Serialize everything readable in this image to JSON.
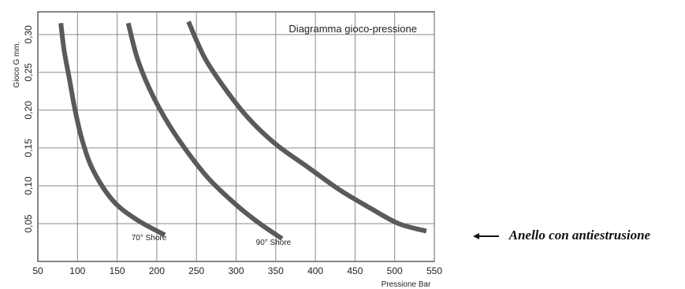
{
  "chart_data": {
    "type": "line",
    "title": "Diagramma gioco-pressione",
    "xlabel": "Pressione Bar",
    "ylabel": "Gioco G mm.",
    "xlim": [
      50,
      550
    ],
    "ylim": [
      0.0,
      0.33
    ],
    "x_ticks": [
      "50",
      "100",
      "150",
      "200",
      "250",
      "300",
      "350",
      "400",
      "450",
      "500",
      "550"
    ],
    "y_ticks": [
      "0,05",
      "0,10",
      "0,15",
      "0,20",
      "0,25",
      "0,30"
    ],
    "grid": true,
    "series": [
      {
        "name": "70° Shore",
        "points": [
          [
            79,
            0.315
          ],
          [
            83,
            0.28
          ],
          [
            90,
            0.24
          ],
          [
            97,
            0.2
          ],
          [
            106,
            0.16
          ],
          [
            120,
            0.12
          ],
          [
            145,
            0.08
          ],
          [
            175,
            0.055
          ],
          [
            210,
            0.035
          ]
        ]
      },
      {
        "name": "90° Shore",
        "points": [
          [
            164,
            0.315
          ],
          [
            175,
            0.27
          ],
          [
            190,
            0.23
          ],
          [
            210,
            0.19
          ],
          [
            235,
            0.15
          ],
          [
            265,
            0.11
          ],
          [
            300,
            0.075
          ],
          [
            330,
            0.05
          ],
          [
            358,
            0.03
          ]
        ]
      },
      {
        "name": "",
        "points": [
          [
            240,
            0.317
          ],
          [
            260,
            0.27
          ],
          [
            285,
            0.23
          ],
          [
            315,
            0.19
          ],
          [
            350,
            0.155
          ],
          [
            390,
            0.125
          ],
          [
            430,
            0.095
          ],
          [
            470,
            0.07
          ],
          [
            505,
            0.05
          ],
          [
            540,
            0.04
          ]
        ]
      }
    ],
    "curve_labels": [
      {
        "text": "70° Shore",
        "x": 168,
        "y": 0.028
      },
      {
        "text": "90° Shore",
        "x": 325,
        "y": 0.022
      }
    ],
    "colors": {
      "curve": "#5a5a5a",
      "grid": "#8a8a8a",
      "axis": "#333333"
    }
  },
  "side_note": "Anello con  antiestrusione",
  "icons": {
    "side_arrow": "arrow-left-icon"
  }
}
